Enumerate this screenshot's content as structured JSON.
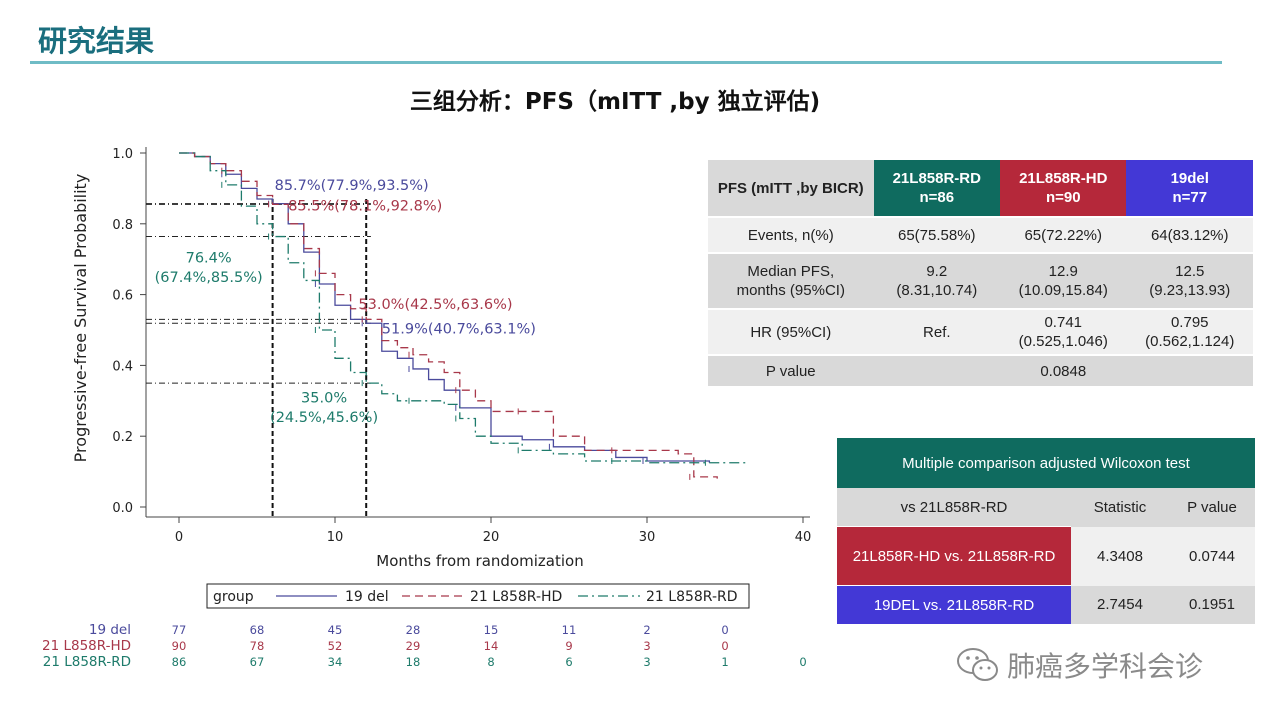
{
  "header": {
    "section_title": "研究结果",
    "slide_title": "三组分析：PFS（mITT ,by 独立评估)"
  },
  "colors": {
    "title_teal": "#1a6e7e",
    "rule": "#6fbcc6",
    "rd_green": "#0f6b5f",
    "hd_red": "#b5283a",
    "del_blue": "#4338d6",
    "plot_del": "#4a4a9c",
    "plot_hd": "#a8384a",
    "plot_rd": "#1e7b6b"
  },
  "chart_data": {
    "type": "line",
    "xlabel": "Months from randomization",
    "ylabel": "Progressive-free Survival Probability",
    "xlim": [
      0,
      40
    ],
    "ylim": [
      0,
      1
    ],
    "x_ticks": [
      "0",
      "10",
      "20",
      "30",
      "40"
    ],
    "y_ticks": [
      "0.0",
      "0.2",
      "0.4",
      "0.6",
      "0.8",
      "1.0"
    ],
    "legend": {
      "title": "group",
      "placement": "bottom",
      "entries": [
        "19 del",
        "21 L858R-HD",
        "21 L858R-RD"
      ]
    },
    "series": [
      {
        "name": "19 del",
        "x": [
          0,
          1,
          2,
          3,
          4,
          5,
          6,
          7,
          8,
          9,
          10,
          11,
          12,
          13,
          14,
          15,
          16,
          17,
          18,
          20,
          22,
          24,
          26,
          28,
          30,
          32,
          34
        ],
        "y": [
          1.0,
          0.99,
          0.97,
          0.94,
          0.9,
          0.87,
          0.857,
          0.8,
          0.72,
          0.63,
          0.57,
          0.53,
          0.519,
          0.44,
          0.42,
          0.39,
          0.36,
          0.33,
          0.28,
          0.2,
          0.19,
          0.17,
          0.16,
          0.14,
          0.13,
          0.13,
          0.125
        ]
      },
      {
        "name": "21 L858R-HD",
        "x": [
          0,
          1,
          2,
          3,
          4,
          5,
          6,
          7,
          8,
          9,
          10,
          11,
          12,
          13,
          14,
          15,
          16,
          17,
          18,
          19,
          20,
          22,
          24,
          26,
          28,
          30,
          32,
          33,
          34.5
        ],
        "y": [
          1.0,
          0.99,
          0.97,
          0.95,
          0.92,
          0.88,
          0.855,
          0.8,
          0.73,
          0.66,
          0.6,
          0.56,
          0.53,
          0.47,
          0.45,
          0.43,
          0.41,
          0.38,
          0.33,
          0.3,
          0.27,
          0.27,
          0.2,
          0.16,
          0.16,
          0.16,
          0.15,
          0.085,
          0.08
        ]
      },
      {
        "name": "21 L858R-RD",
        "x": [
          0,
          1,
          2,
          3,
          4,
          5,
          6,
          7,
          8,
          9,
          10,
          11,
          12,
          13,
          14,
          15,
          16,
          17,
          18,
          19,
          20,
          22,
          24,
          26,
          28,
          30,
          32,
          34,
          36.5
        ],
        "y": [
          1.0,
          0.99,
          0.95,
          0.91,
          0.85,
          0.8,
          0.764,
          0.69,
          0.64,
          0.5,
          0.42,
          0.38,
          0.35,
          0.32,
          0.3,
          0.3,
          0.3,
          0.29,
          0.25,
          0.2,
          0.18,
          0.16,
          0.15,
          0.13,
          0.13,
          0.125,
          0.125,
          0.125,
          0.125
        ]
      }
    ],
    "annotations": [
      {
        "text": "85.7%(77.9%,93.5%)",
        "series": "19 del"
      },
      {
        "text": "85.5%(78.1%,92.8%)",
        "series": "21 L858R-HD"
      },
      {
        "text": "76.4%",
        "series": "21 L858R-RD"
      },
      {
        "text": "(67.4%,85.5%)",
        "series": "21 L858R-RD"
      },
      {
        "text": "53.0%(42.5%,63.6%)",
        "series": "21 L858R-HD"
      },
      {
        "text": "51.9%(40.7%,63.1%)",
        "series": "19 del"
      },
      {
        "text": "35.0%",
        "series": "21 L858R-RD"
      },
      {
        "text": "(24.5%,45.6%)",
        "series": "21 L858R-RD"
      }
    ],
    "reference_x": [
      6,
      12
    ],
    "reference_y": [
      0.857,
      0.855,
      0.764,
      0.53,
      0.519,
      0.35
    ],
    "risk_table": {
      "rows": [
        {
          "label": "19 del",
          "values": [
            "77",
            "68",
            "45",
            "28",
            "15",
            "11",
            "2",
            "0"
          ]
        },
        {
          "label": "21 L858R-HD",
          "values": [
            "90",
            "78",
            "52",
            "29",
            "14",
            "9",
            "3",
            "0"
          ]
        },
        {
          "label": "21 L858R-RD",
          "values": [
            "86",
            "67",
            "34",
            "18",
            "8",
            "6",
            "3",
            "1",
            "0"
          ]
        }
      ]
    }
  },
  "pfs_table": {
    "corner": "PFS (mITT ,by BICR)",
    "columns": [
      {
        "name": "21L858R-RD",
        "n": "n=86"
      },
      {
        "name": "21L858R-HD",
        "n": "n=90"
      },
      {
        "name": "19del",
        "n": "n=77"
      }
    ],
    "rows": [
      {
        "label": "Events, n(%)",
        "cells": [
          "65(75.58%)",
          "65(72.22%)",
          "64(83.12%)"
        ]
      },
      {
        "label_line1": "Median PFS,",
        "label_line2": "months (95%CI)",
        "cells": [
          [
            "9.2",
            "(8.31,10.74)"
          ],
          [
            "12.9",
            "(10.09,15.84)"
          ],
          [
            "12.5",
            "(9.23,13.93)"
          ]
        ]
      },
      {
        "label": "HR (95%CI)",
        "ref": "Ref.",
        "cells": [
          [
            "0.741",
            "(0.525,1.046)"
          ],
          [
            "0.795",
            "(0.562,1.124)"
          ]
        ]
      },
      {
        "label": "P value",
        "value": "0.0848"
      }
    ]
  },
  "wilcoxon_table": {
    "title": "Multiple comparison adjusted Wilcoxon test",
    "headers": [
      "vs 21L858R-RD",
      "Statistic",
      "P value"
    ],
    "rows": [
      {
        "label": "21L858R-HD vs. 21L858R-RD",
        "statistic": "4.3408",
        "p": "0.0744"
      },
      {
        "label": "19DEL vs. 21L858R-RD",
        "statistic": "2.7454",
        "p": "0.1951"
      }
    ]
  },
  "watermark": {
    "text": "肺癌多学科会诊",
    "icon": "wechat-icon"
  }
}
